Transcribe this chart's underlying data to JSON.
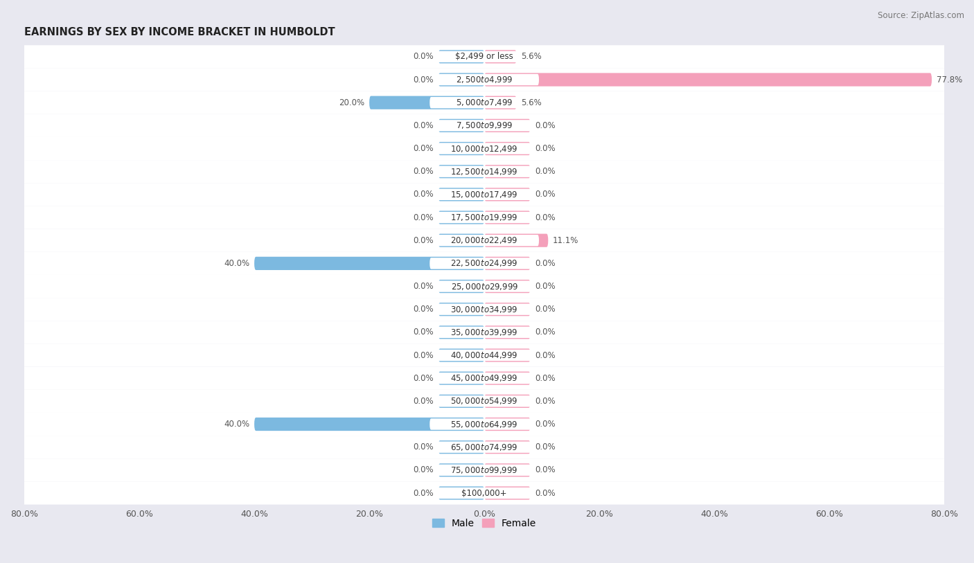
{
  "title": "EARNINGS BY SEX BY INCOME BRACKET IN HUMBOLDT",
  "source": "Source: ZipAtlas.com",
  "categories": [
    "$2,499 or less",
    "$2,500 to $4,999",
    "$5,000 to $7,499",
    "$7,500 to $9,999",
    "$10,000 to $12,499",
    "$12,500 to $14,999",
    "$15,000 to $17,499",
    "$17,500 to $19,999",
    "$20,000 to $22,499",
    "$22,500 to $24,999",
    "$25,000 to $29,999",
    "$30,000 to $34,999",
    "$35,000 to $39,999",
    "$40,000 to $44,999",
    "$45,000 to $49,999",
    "$50,000 to $54,999",
    "$55,000 to $64,999",
    "$65,000 to $74,999",
    "$75,000 to $99,999",
    "$100,000+"
  ],
  "male_values": [
    0.0,
    0.0,
    20.0,
    0.0,
    0.0,
    0.0,
    0.0,
    0.0,
    0.0,
    40.0,
    0.0,
    0.0,
    0.0,
    0.0,
    0.0,
    0.0,
    40.0,
    0.0,
    0.0,
    0.0
  ],
  "female_values": [
    5.6,
    77.8,
    5.6,
    0.0,
    0.0,
    0.0,
    0.0,
    0.0,
    11.1,
    0.0,
    0.0,
    0.0,
    0.0,
    0.0,
    0.0,
    0.0,
    0.0,
    0.0,
    0.0,
    0.0
  ],
  "male_color": "#7cb9e0",
  "female_color": "#f4a0ba",
  "background_color": "#e8e8f0",
  "row_color": "#ffffff",
  "xlim": 80.0,
  "title_fontsize": 10.5,
  "source_fontsize": 8.5,
  "label_fontsize": 8.5,
  "value_fontsize": 8.5,
  "tick_fontsize": 9,
  "bar_height": 0.58,
  "stub_size": 8.0,
  "legend_labels": [
    "Male",
    "Female"
  ]
}
